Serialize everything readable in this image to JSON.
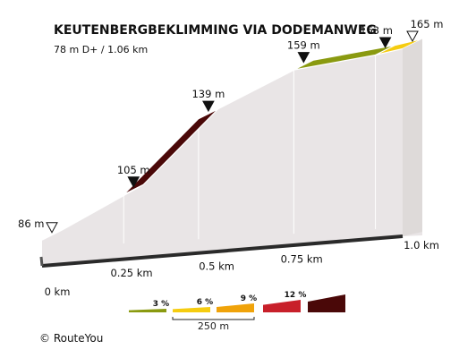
{
  "header": {
    "title": "KEUTENBERGBEKLIMMING VIA DODEMANWEG",
    "subtitle": "78 m D+ / 1.06 km"
  },
  "chart_data": {
    "type": "area",
    "subtype": "elevation-profile",
    "x_unit": "km",
    "y_unit": "m",
    "points": [
      {
        "km": 0.0,
        "elev": 86,
        "label": "86 m",
        "marker": "open-triangle"
      },
      {
        "km": 0.24,
        "elev": 105,
        "label": "105 m",
        "marker": "filled-triangle"
      },
      {
        "km": 0.46,
        "elev": 139,
        "label": "139 m",
        "marker": "filled-triangle"
      },
      {
        "km": 0.74,
        "elev": 159,
        "label": "159 m",
        "marker": "filled-triangle"
      },
      {
        "km": 0.98,
        "elev": 163,
        "label": "163 m",
        "marker": "filled-triangle"
      },
      {
        "km": 1.06,
        "elev": 165,
        "label": "165 m",
        "marker": "open-triangle"
      }
    ],
    "segments": [
      {
        "from_km": 0.0,
        "to_km": 0.24,
        "color": "#f0a30a"
      },
      {
        "from_km": 0.24,
        "to_km": 0.46,
        "color": "#4a0808"
      },
      {
        "from_km": 0.46,
        "to_km": 0.74,
        "color": "#f0a30a"
      },
      {
        "from_km": 0.74,
        "to_km": 0.98,
        "color": "#8a9a10"
      },
      {
        "from_km": 0.98,
        "to_km": 1.06,
        "color": "#f5cc10"
      }
    ],
    "x_ticks": [
      {
        "value": 0,
        "label": "0 km"
      },
      {
        "value": 0.25,
        "label": "0.25 km"
      },
      {
        "value": 0.5,
        "label": "0.5 km"
      },
      {
        "value": 0.75,
        "label": "0.75 km"
      },
      {
        "value": 1.0,
        "label": "1.0 km"
      }
    ],
    "legend": {
      "items": [
        {
          "label": "3 %",
          "color": "#8a9a10"
        },
        {
          "label": "6 %",
          "color": "#f5cc10"
        },
        {
          "label": "9 %",
          "color": "#f0a30a"
        },
        {
          "label": "12 %",
          "color": "#c8202a"
        },
        {
          "label": "",
          "color": "#4a0808"
        }
      ],
      "scale_label": "250 m"
    }
  },
  "footer": {
    "copyright": "© RouteYou"
  }
}
